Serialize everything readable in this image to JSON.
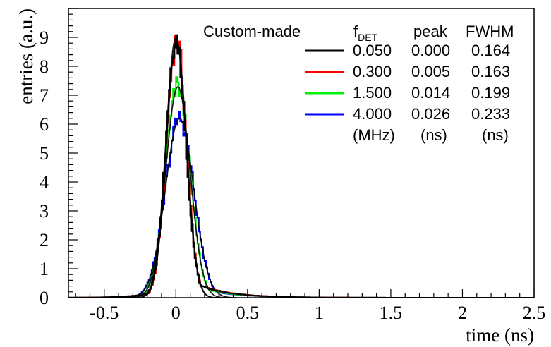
{
  "chart_data": {
    "type": "line",
    "xlabel": "time (ns)",
    "ylabel": "entries (a.u.)",
    "xlim": [
      -0.75,
      2.5
    ],
    "ylim": [
      0,
      10
    ],
    "x_ticks": [
      -0.5,
      0,
      0.5,
      1,
      1.5,
      2,
      2.5
    ],
    "x_tick_labels": [
      "-0.5",
      "0",
      "0.5",
      "1",
      "1.5",
      "2",
      "2.5"
    ],
    "y_ticks": [
      0,
      1,
      2,
      3,
      4,
      5,
      6,
      7,
      8,
      9
    ],
    "y_tick_labels": [
      "0",
      "1",
      "2",
      "3",
      "4",
      "5",
      "6",
      "7",
      "8",
      "9"
    ],
    "grid": false,
    "legend": {
      "placement": "top-right",
      "title": "Custom-made",
      "col_f_main": "f",
      "col_f_sub": "DET",
      "col_peak": "peak",
      "col_fwhm": "FWHM",
      "unit_f": "(MHz)",
      "unit_peak": "(ns)",
      "unit_fwhm": "(ns)"
    },
    "series": [
      {
        "f_det": "0.050",
        "peak": "0.000",
        "fwhm": "0.164",
        "color": "#000000",
        "amplitude": 9.0,
        "tail": 0.045
      },
      {
        "f_det": "0.300",
        "peak": "0.005",
        "fwhm": "0.163",
        "color": "#ff0000",
        "amplitude": 8.9,
        "tail": 0.05
      },
      {
        "f_det": "1.500",
        "peak": "0.014",
        "fwhm": "0.199",
        "color": "#00ee00",
        "amplitude": 7.3,
        "tail": 0.06
      },
      {
        "f_det": "4.000",
        "peak": "0.026",
        "fwhm": "0.233",
        "color": "#0000ff",
        "amplitude": 6.2,
        "tail": 0.075
      }
    ]
  }
}
